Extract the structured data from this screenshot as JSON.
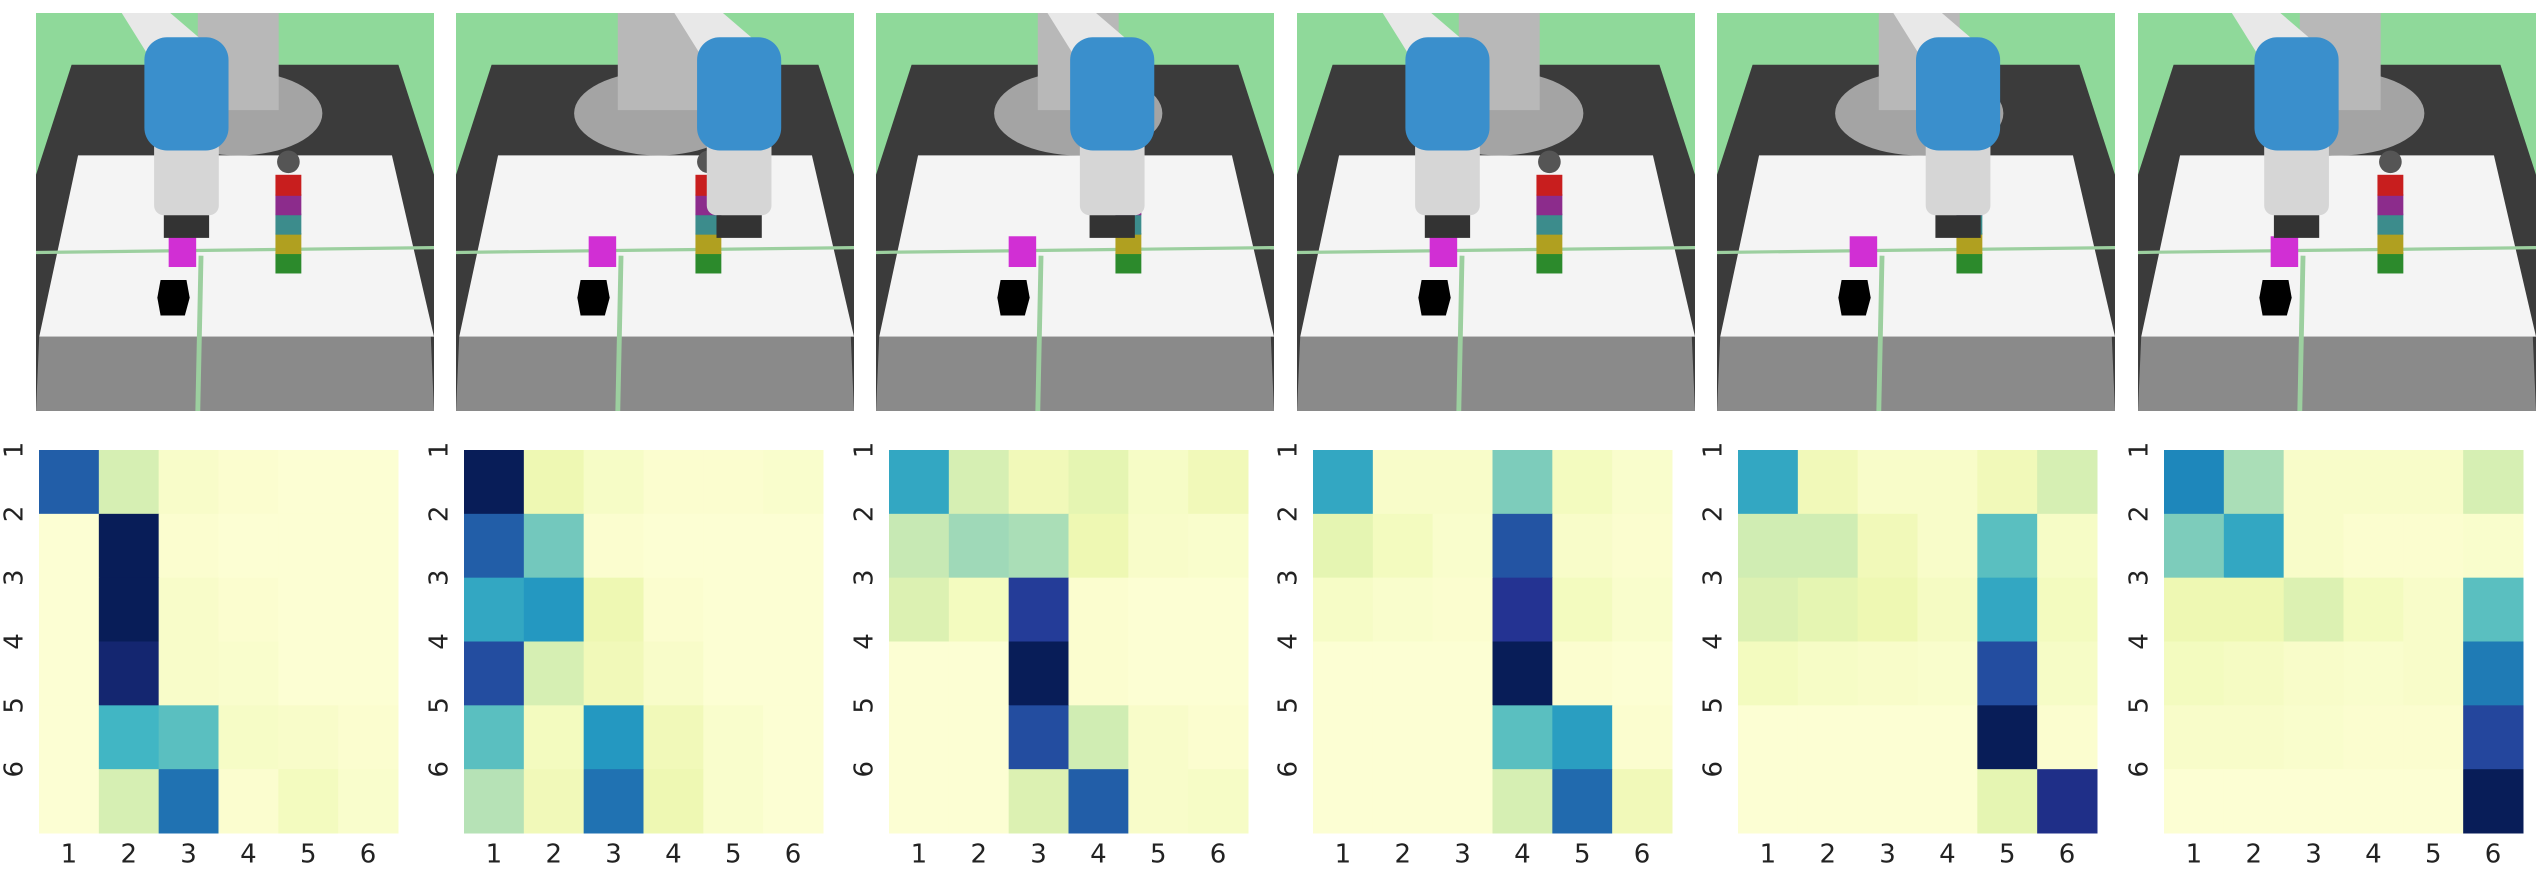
{
  "chart_data": [
    {
      "type": "heatmap",
      "colormap": "YlGnBu",
      "clim": [
        0,
        1
      ],
      "x_labels": [
        "1",
        "2",
        "3",
        "4",
        "5",
        "6"
      ],
      "y_labels": [
        "1",
        "2",
        "3",
        "4",
        "5",
        "6"
      ],
      "values": [
        [
          0.75,
          0.2,
          0.05,
          0.03,
          0.02,
          0.02
        ],
        [
          0.02,
          1.0,
          0.03,
          0.02,
          0.02,
          0.02
        ],
        [
          0.02,
          1.0,
          0.05,
          0.03,
          0.02,
          0.02
        ],
        [
          0.02,
          0.95,
          0.05,
          0.04,
          0.02,
          0.02
        ],
        [
          0.02,
          0.5,
          0.45,
          0.06,
          0.05,
          0.03
        ],
        [
          0.02,
          0.2,
          0.7,
          0.03,
          0.08,
          0.04
        ]
      ]
    },
    {
      "type": "heatmap",
      "colormap": "YlGnBu",
      "clim": [
        0,
        1
      ],
      "x_labels": [
        "1",
        "2",
        "3",
        "4",
        "5",
        "6"
      ],
      "y_labels": [
        "1",
        "2",
        "3",
        "4",
        "5",
        "6"
      ],
      "values": [
        [
          1.0,
          0.12,
          0.06,
          0.03,
          0.03,
          0.04
        ],
        [
          0.75,
          0.4,
          0.03,
          0.02,
          0.02,
          0.02
        ],
        [
          0.55,
          0.6,
          0.12,
          0.03,
          0.02,
          0.02
        ],
        [
          0.8,
          0.2,
          0.1,
          0.05,
          0.02,
          0.02
        ],
        [
          0.45,
          0.08,
          0.6,
          0.1,
          0.04,
          0.02
        ],
        [
          0.28,
          0.1,
          0.7,
          0.12,
          0.04,
          0.02
        ]
      ]
    },
    {
      "type": "heatmap",
      "colormap": "YlGnBu",
      "clim": [
        0,
        1
      ],
      "x_labels": [
        "1",
        "2",
        "3",
        "4",
        "5",
        "6"
      ],
      "y_labels": [
        "1",
        "2",
        "3",
        "4",
        "5",
        "6"
      ],
      "values": [
        [
          0.55,
          0.2,
          0.1,
          0.15,
          0.06,
          0.1
        ],
        [
          0.25,
          0.32,
          0.3,
          0.12,
          0.05,
          0.04
        ],
        [
          0.18,
          0.08,
          0.85,
          0.03,
          0.02,
          0.02
        ],
        [
          0.02,
          0.02,
          1.0,
          0.03,
          0.02,
          0.02
        ],
        [
          0.02,
          0.02,
          0.8,
          0.22,
          0.05,
          0.03
        ],
        [
          0.02,
          0.02,
          0.18,
          0.75,
          0.05,
          0.06
        ]
      ]
    },
    {
      "type": "heatmap",
      "colormap": "YlGnBu",
      "clim": [
        0,
        1
      ],
      "x_labels": [
        "1",
        "2",
        "3",
        "4",
        "5",
        "6"
      ],
      "y_labels": [
        "1",
        "2",
        "3",
        "4",
        "5",
        "6"
      ],
      "values": [
        [
          0.55,
          0.05,
          0.05,
          0.38,
          0.08,
          0.04
        ],
        [
          0.15,
          0.08,
          0.04,
          0.78,
          0.05,
          0.03
        ],
        [
          0.06,
          0.04,
          0.03,
          0.88,
          0.08,
          0.04
        ],
        [
          0.02,
          0.02,
          0.02,
          1.0,
          0.03,
          0.02
        ],
        [
          0.02,
          0.02,
          0.02,
          0.45,
          0.58,
          0.03
        ],
        [
          0.02,
          0.02,
          0.02,
          0.2,
          0.72,
          0.1
        ]
      ]
    },
    {
      "type": "heatmap",
      "colormap": "YlGnBu",
      "clim": [
        0,
        1
      ],
      "x_labels": [
        "1",
        "2",
        "3",
        "4",
        "5",
        "6"
      ],
      "y_labels": [
        "1",
        "2",
        "3",
        "4",
        "5",
        "6"
      ],
      "values": [
        [
          0.55,
          0.1,
          0.05,
          0.05,
          0.1,
          0.2
        ],
        [
          0.22,
          0.22,
          0.1,
          0.05,
          0.45,
          0.06
        ],
        [
          0.18,
          0.15,
          0.12,
          0.07,
          0.55,
          0.08
        ],
        [
          0.08,
          0.06,
          0.05,
          0.04,
          0.8,
          0.06
        ],
        [
          0.02,
          0.02,
          0.02,
          0.02,
          1.0,
          0.03
        ],
        [
          0.02,
          0.02,
          0.02,
          0.02,
          0.15,
          0.9
        ]
      ]
    },
    {
      "type": "heatmap",
      "colormap": "YlGnBu",
      "clim": [
        0,
        1
      ],
      "x_labels": [
        "1",
        "2",
        "3",
        "4",
        "5",
        "6"
      ],
      "y_labels": [
        "1",
        "2",
        "3",
        "4",
        "5",
        "6"
      ],
      "values": [
        [
          0.65,
          0.3,
          0.05,
          0.05,
          0.05,
          0.2
        ],
        [
          0.38,
          0.55,
          0.05,
          0.03,
          0.03,
          0.04
        ],
        [
          0.12,
          0.12,
          0.18,
          0.08,
          0.05,
          0.45
        ],
        [
          0.08,
          0.07,
          0.05,
          0.04,
          0.05,
          0.68
        ],
        [
          0.05,
          0.05,
          0.04,
          0.03,
          0.03,
          0.82
        ],
        [
          0.02,
          0.02,
          0.02,
          0.02,
          0.02,
          1.0
        ]
      ]
    }
  ]
}
